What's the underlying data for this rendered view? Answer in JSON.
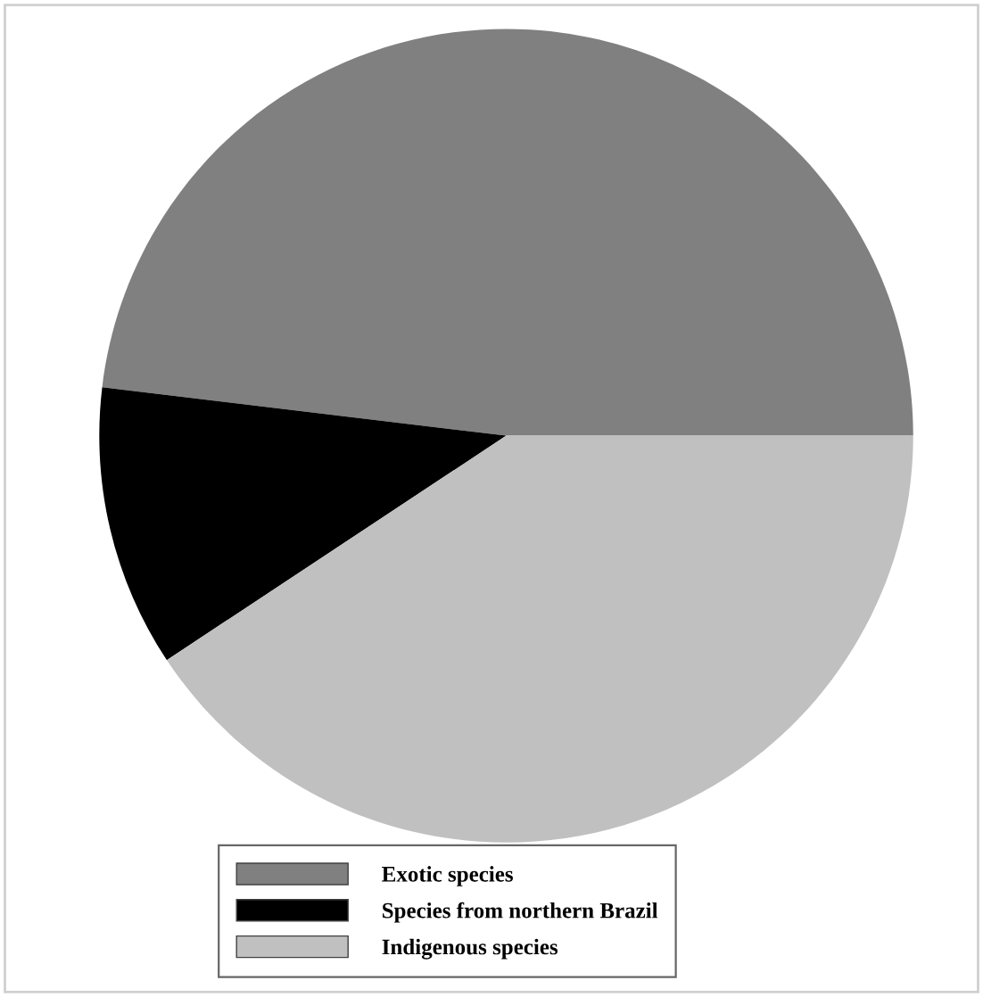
{
  "chart_data": {
    "type": "pie",
    "categories": [
      "Exotic species",
      "Species from northern Brazil",
      "Indigenous species"
    ],
    "values": [
      48.1,
      11.2,
      40.7
    ],
    "colors": [
      "#808080",
      "#000000",
      "#c0c0c0"
    ],
    "legend": "bottom"
  }
}
